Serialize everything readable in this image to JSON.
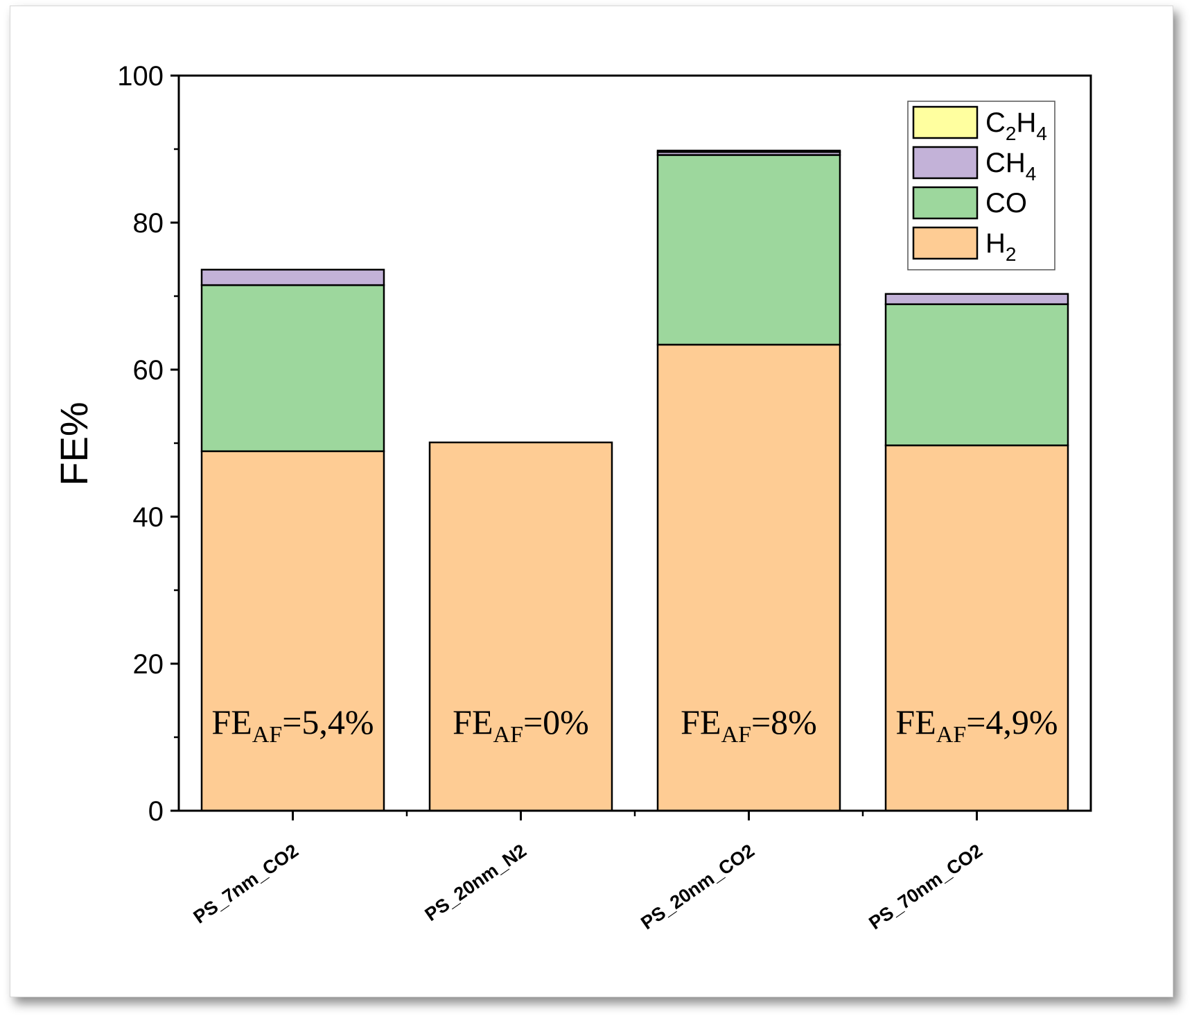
{
  "chart_data": {
    "type": "bar",
    "stacked": true,
    "title": "",
    "xlabel": "",
    "ylabel": "FE%",
    "ylim": [
      0,
      100
    ],
    "yticks": [
      0,
      20,
      40,
      60,
      80,
      100
    ],
    "grid": false,
    "legend_position": "top-right",
    "categories": [
      "PS_7nm_CO2",
      "PS_20nm_N2",
      "PS_20nm_CO2",
      "PS_70nm_CO2"
    ],
    "series": [
      {
        "name": "H2",
        "label_main": "H",
        "label_sub": "2",
        "color": "#FECC94",
        "values": [
          48.9,
          50.1,
          63.4,
          49.7
        ]
      },
      {
        "name": "CO",
        "label_main": "CO",
        "label_sub": "",
        "color": "#9DD79D",
        "values": [
          22.6,
          0,
          25.8,
          19.2
        ]
      },
      {
        "name": "CH4",
        "label_main": "CH",
        "label_sub": "4",
        "color": "#C3B2D8",
        "values": [
          2.1,
          0,
          0.4,
          1.4
        ]
      },
      {
        "name": "C2H4",
        "label_main": "C",
        "label_sub": "2",
        "label_main2": "H",
        "label_sub2": "4",
        "color": "#FFFF9F",
        "values": [
          0,
          0,
          0.2,
          0
        ]
      }
    ],
    "legend_order": [
      "C2H4",
      "CH4",
      "CO",
      "H2"
    ],
    "annotations": [
      {
        "category": "PS_7nm_CO2",
        "main": "FE",
        "sub": "AF",
        "value": "=5,4%"
      },
      {
        "category": "PS_20nm_N2",
        "main": "FE",
        "sub": "AF",
        "value": "=0%"
      },
      {
        "category": "PS_20nm_CO2",
        "main": "FE",
        "sub": "AF",
        "value": "=8%"
      },
      {
        "category": "PS_70nm_CO2",
        "main": "FE",
        "sub": "AF",
        "value": "=4,9%"
      }
    ]
  }
}
